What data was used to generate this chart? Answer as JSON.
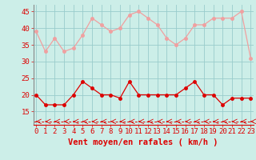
{
  "x": [
    0,
    1,
    2,
    3,
    4,
    5,
    6,
    7,
    8,
    9,
    10,
    11,
    12,
    13,
    14,
    15,
    16,
    17,
    18,
    19,
    20,
    21,
    22,
    23
  ],
  "rafales": [
    39,
    33,
    37,
    33,
    34,
    38,
    43,
    41,
    39,
    40,
    44,
    45,
    43,
    41,
    37,
    35,
    37,
    41,
    41,
    43,
    43,
    43,
    45,
    31
  ],
  "vent_moyen": [
    20,
    17,
    17,
    17,
    20,
    24,
    22,
    20,
    20,
    19,
    24,
    20,
    20,
    20,
    20,
    20,
    22,
    24,
    20,
    20,
    17,
    19,
    19,
    19
  ],
  "dashed_y": 12,
  "bg_color": "#cceee8",
  "grid_color": "#99cccc",
  "rafales_color": "#f0a0a0",
  "vent_color": "#dd0000",
  "dashed_color": "#dd0000",
  "ylabel_ticks": [
    15,
    20,
    25,
    30,
    35,
    40,
    45
  ],
  "ylim": [
    11,
    47
  ],
  "xlim": [
    -0.3,
    23.3
  ],
  "xlabel": "Vent moyen/en rafales ( km/h )",
  "xlabel_fontsize": 7.5,
  "tick_fontsize": 6.5,
  "marker_size": 2.5,
  "line_width": 0.9
}
